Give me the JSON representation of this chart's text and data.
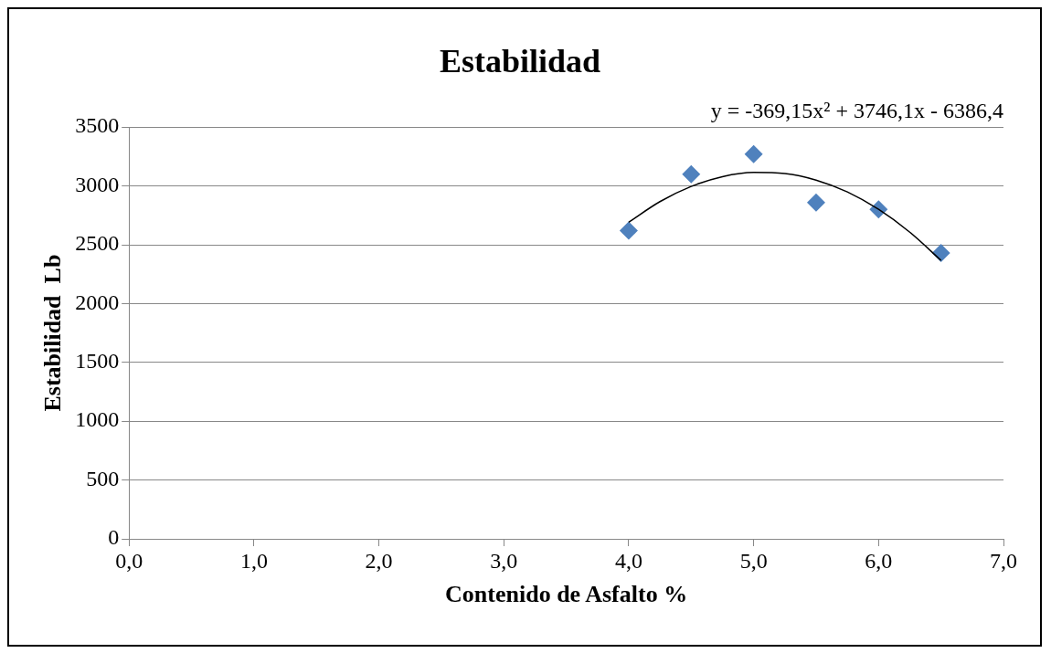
{
  "chart_data": {
    "type": "scatter",
    "title": "Estabilidad",
    "xlabel": "Contenido de Asfalto %",
    "ylabel": "Estabilidad  Lb",
    "annotations": [
      "y = -369,15x² + 3746,1x - 6386,4"
    ],
    "series": [
      {
        "type": "scatter",
        "color": "#4f81bd",
        "marker": "diamond",
        "x": [
          4.0,
          4.5,
          5.0,
          5.5,
          6.0,
          6.5
        ],
        "values": [
          2620,
          3100,
          3270,
          2860,
          2800,
          2430
        ]
      },
      {
        "type": "line",
        "color": "#000000",
        "marker": "none",
        "line_style": "solid",
        "x": [
          4.0,
          4.25,
          4.5,
          4.75,
          5.0,
          5.25,
          5.5,
          5.75,
          6.0,
          6.25,
          6.5
        ],
        "values": [
          2692,
          2867,
          2996,
          3079,
          3115,
          3106,
          3050,
          2949,
          2801,
          2607,
          2367
        ]
      }
    ],
    "xlim": [
      0,
      7
    ],
    "xticks": [
      {
        "value": 0,
        "label": "0,0"
      },
      {
        "value": 1,
        "label": "1,0"
      },
      {
        "value": 2,
        "label": "2,0"
      },
      {
        "value": 3,
        "label": "3,0"
      },
      {
        "value": 4,
        "label": "4,0"
      },
      {
        "value": 5,
        "label": "5,0"
      },
      {
        "value": 6,
        "label": "6,0"
      },
      {
        "value": 7,
        "label": "7,0"
      }
    ],
    "ylim": [
      0,
      3500
    ],
    "yticks": [
      0,
      500,
      1000,
      1500,
      2000,
      2500,
      3000,
      3500
    ],
    "grid": "y",
    "legend": false
  }
}
